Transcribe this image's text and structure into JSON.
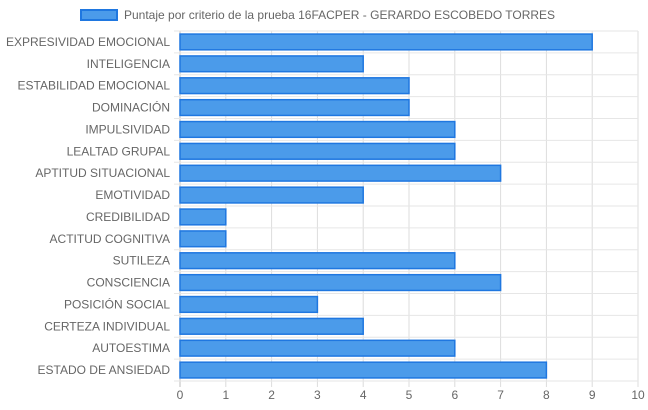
{
  "chart_data": {
    "type": "bar",
    "orientation": "horizontal",
    "categories": [
      "EXPRESIVIDAD EMOCIONAL",
      "INTELIGENCIA",
      "ESTABILIDAD EMOCIONAL",
      "DOMINACIÓN",
      "IMPULSIVIDAD",
      "LEALTAD GRUPAL",
      "APTITUD SITUACIONAL",
      "EMOTIVIDAD",
      "CREDIBILIDAD",
      "ACTITUD COGNITIVA",
      "SUTILEZA",
      "CONSCIENCIA",
      "POSICIÓN SOCIAL",
      "CERTEZA INDIVIDUAL",
      "AUTOESTIMA",
      "ESTADO DE ANSIEDAD"
    ],
    "series": [
      {
        "name": "Puntaje por criterio de la prueba 16FACPER - GERARDO ESCOBEDO TORRES",
        "values": [
          9,
          4,
          5,
          5,
          6,
          6,
          7,
          4,
          1,
          1,
          6,
          7,
          3,
          4,
          6,
          8
        ],
        "color": "#4b9bea",
        "border_color": "#1f77e0"
      }
    ],
    "xlim": [
      0,
      10
    ],
    "x_ticks": [
      "0",
      "1",
      "2",
      "3",
      "4",
      "5",
      "6",
      "7",
      "8",
      "9",
      "10"
    ],
    "grid": true,
    "legend_position": "top"
  }
}
